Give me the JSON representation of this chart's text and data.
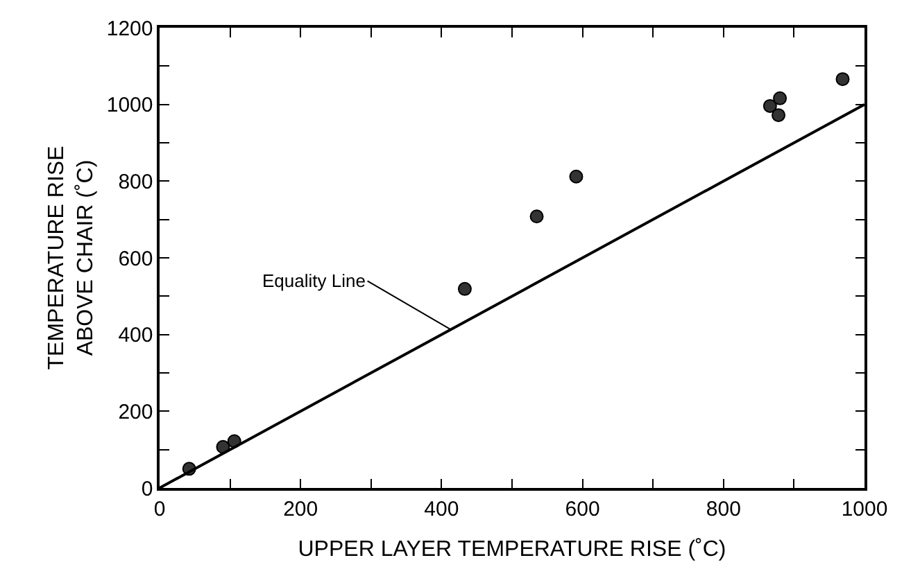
{
  "chart_data": {
    "type": "scatter",
    "xlabel": "UPPER LAYER TEMPERATURE RISE (˚C)",
    "ylabel": "TEMPERATURE RISE\nABOVE CHAIR (˚C)",
    "series": [
      {
        "marker": "circle",
        "color": "#333333",
        "x": [
          42,
          90,
          106,
          433,
          535,
          591,
          866,
          880,
          878,
          969
        ],
        "values": [
          50,
          107,
          122,
          519,
          708,
          812,
          996,
          1016,
          972,
          1066
        ]
      },
      {
        "type": "line",
        "marker": "none",
        "color": "#000000",
        "x": [
          0,
          1000
        ],
        "values": [
          0,
          1000
        ]
      }
    ],
    "annotations": [
      {
        "text": "Equality Line",
        "x": 413,
        "y": 413
      }
    ],
    "xlim": [
      0,
      1000
    ],
    "ylim": [
      0,
      1200
    ],
    "xticks": [
      0,
      {
        "value": 100,
        "label": null
      },
      200,
      {
        "value": 300,
        "label": null
      },
      400,
      {
        "value": 500,
        "label": null
      },
      600,
      {
        "value": 700,
        "label": null
      },
      800,
      {
        "value": 900,
        "label": null
      },
      1000
    ],
    "yticks": [
      0,
      {
        "value": 100,
        "label": null
      },
      200,
      {
        "value": 300,
        "label": null
      },
      400,
      {
        "value": 500,
        "label": null
      },
      600,
      {
        "value": 700,
        "label": null
      },
      800,
      {
        "value": 900,
        "label": null
      },
      1000,
      {
        "value": 1100,
        "label": null
      },
      1200
    ],
    "line_style": "solid",
    "legend": false
  }
}
